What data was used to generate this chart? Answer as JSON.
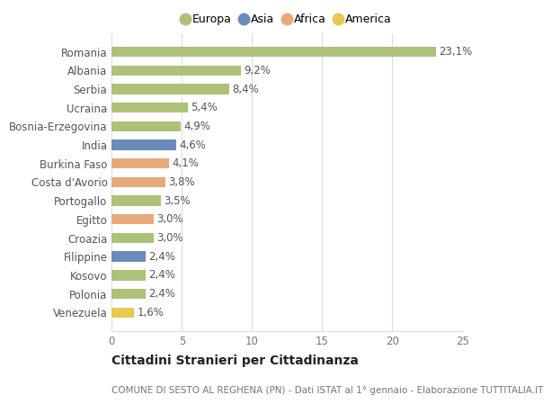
{
  "countries": [
    "Romania",
    "Albania",
    "Serbia",
    "Ucraina",
    "Bosnia-Erzegovina",
    "India",
    "Burkina Faso",
    "Costa d'Avorio",
    "Portogallo",
    "Egitto",
    "Croazia",
    "Filippine",
    "Kosovo",
    "Polonia",
    "Venezuela"
  ],
  "values": [
    23.1,
    9.2,
    8.4,
    5.4,
    4.9,
    4.6,
    4.1,
    3.8,
    3.5,
    3.0,
    3.0,
    2.4,
    2.4,
    2.4,
    1.6
  ],
  "labels": [
    "23,1%",
    "9,2%",
    "8,4%",
    "5,4%",
    "4,9%",
    "4,6%",
    "4,1%",
    "3,8%",
    "3,5%",
    "3,0%",
    "3,0%",
    "2,4%",
    "2,4%",
    "2,4%",
    "1,6%"
  ],
  "colors": [
    "#adc178",
    "#adc178",
    "#adc178",
    "#adc178",
    "#adc178",
    "#6b8cba",
    "#e8a87c",
    "#e8a87c",
    "#adc178",
    "#e8a87c",
    "#adc178",
    "#6b8cba",
    "#adc178",
    "#adc178",
    "#e8c94e"
  ],
  "legend_names": [
    "Europa",
    "Asia",
    "Africa",
    "America"
  ],
  "legend_colors": [
    "#adc178",
    "#6b8cba",
    "#e8a87c",
    "#e8c94e"
  ],
  "xlim": [
    0,
    25
  ],
  "xticks": [
    0,
    5,
    10,
    15,
    20,
    25
  ],
  "title": "Cittadini Stranieri per Cittadinanza",
  "subtitle": "COMUNE DI SESTO AL REGHENA (PN) - Dati ISTAT al 1° gennaio - Elaborazione TUTTITALIA.IT",
  "background_color": "#ffffff",
  "grid_color": "#dddddd",
  "bar_height": 0.55,
  "label_fontsize": 8.5,
  "tick_fontsize": 8.5,
  "title_fontsize": 10,
  "subtitle_fontsize": 7.5
}
